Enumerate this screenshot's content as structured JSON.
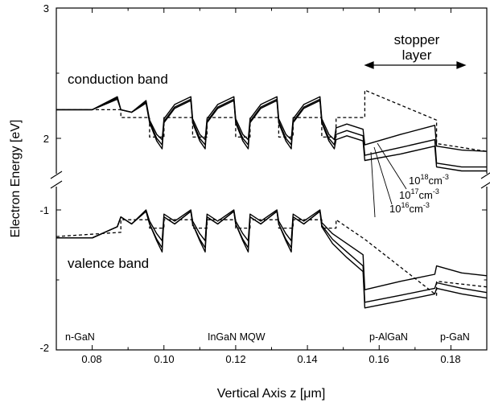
{
  "chart_data": {
    "type": "line",
    "xlabel": "Vertical Axis z [μm]",
    "ylabel": "Electron Energy [eV]",
    "xlim": [
      0.07,
      0.19
    ],
    "x_ticks": [
      "0.08",
      "0.10",
      "0.12",
      "0.14",
      "0.16",
      "0.18"
    ],
    "y_ticks_upper": [
      "2",
      "3"
    ],
    "y_ticks_lower": [
      "-2",
      "-1"
    ],
    "y_axis_break": true,
    "y_segments": [
      {
        "range": [
          1.7,
          3.0
        ],
        "label": "upper"
      },
      {
        "range": [
          -2.0,
          -0.5
        ],
        "label": "lower"
      }
    ],
    "annotations": {
      "conduction_band": "conduction band",
      "valence_band": "valence band",
      "stopper": "stopper",
      "layer": "layer",
      "doping": [
        {
          "base": "10",
          "exp": "18",
          "unit": "cm",
          "unit_exp": "-3"
        },
        {
          "base": "10",
          "exp": "17",
          "unit": "cm",
          "unit_exp": "-3"
        },
        {
          "base": "10",
          "exp": "16",
          "unit": "cm",
          "unit_exp": "-3"
        }
      ],
      "regions": [
        "n-GaN",
        "InGaN MQW",
        "p-AlGaN",
        "p-GaN"
      ]
    },
    "series": [
      {
        "name": "10^16 cm^-3",
        "style": "solid",
        "band": "conduction",
        "x": [
          0.07,
          0.08,
          0.087,
          0.088,
          0.091,
          0.095,
          0.096,
          0.098,
          0.0995,
          0.1,
          0.103,
          0.1075,
          0.108,
          0.11,
          0.1115,
          0.112,
          0.115,
          0.1195,
          0.12,
          0.122,
          0.1235,
          0.124,
          0.127,
          0.1315,
          0.132,
          0.134,
          0.1355,
          0.136,
          0.139,
          0.1435,
          0.144,
          0.146,
          0.1475,
          0.148,
          0.151,
          0.1555,
          0.156,
          0.166,
          0.1755,
          0.176,
          0.183,
          0.19
        ],
        "y": [
          2.22,
          2.22,
          2.3,
          2.22,
          2.2,
          2.27,
          2.12,
          1.98,
          1.92,
          2.12,
          2.23,
          2.29,
          2.12,
          1.98,
          1.92,
          2.12,
          2.23,
          2.29,
          2.12,
          1.98,
          1.92,
          2.12,
          2.23,
          2.29,
          2.12,
          1.98,
          1.92,
          2.12,
          2.23,
          2.29,
          2.12,
          1.98,
          1.92,
          1.99,
          2.02,
          1.98,
          1.83,
          1.88,
          1.94,
          1.78,
          1.75,
          1.75
        ]
      },
      {
        "name": "10^17 cm^-3",
        "style": "solid",
        "band": "conduction",
        "x": [
          0.07,
          0.08,
          0.087,
          0.088,
          0.091,
          0.095,
          0.096,
          0.098,
          0.0995,
          0.1,
          0.103,
          0.1075,
          0.108,
          0.11,
          0.1115,
          0.112,
          0.115,
          0.1195,
          0.12,
          0.122,
          0.1235,
          0.124,
          0.127,
          0.1315,
          0.132,
          0.134,
          0.1355,
          0.136,
          0.139,
          0.1435,
          0.144,
          0.146,
          0.1475,
          0.148,
          0.151,
          0.1555,
          0.156,
          0.166,
          0.1755,
          0.176,
          0.183,
          0.19
        ],
        "y": [
          2.22,
          2.22,
          2.31,
          2.22,
          2.2,
          2.28,
          2.13,
          2.0,
          1.95,
          2.13,
          2.24,
          2.3,
          2.13,
          2.0,
          1.95,
          2.13,
          2.24,
          2.3,
          2.13,
          2.0,
          1.95,
          2.13,
          2.24,
          2.3,
          2.13,
          2.0,
          1.95,
          2.13,
          2.24,
          2.3,
          2.13,
          2.0,
          1.95,
          2.03,
          2.06,
          2.02,
          1.87,
          1.93,
          1.99,
          1.81,
          1.78,
          1.78
        ]
      },
      {
        "name": "10^18 cm^-3",
        "style": "solid",
        "band": "conduction",
        "x": [
          0.07,
          0.08,
          0.087,
          0.088,
          0.091,
          0.095,
          0.096,
          0.098,
          0.0995,
          0.1,
          0.103,
          0.1075,
          0.108,
          0.11,
          0.1115,
          0.112,
          0.115,
          0.1195,
          0.12,
          0.122,
          0.1235,
          0.124,
          0.127,
          0.1315,
          0.132,
          0.134,
          0.1355,
          0.136,
          0.139,
          0.1435,
          0.144,
          0.146,
          0.1475,
          0.148,
          0.151,
          0.1555,
          0.156,
          0.166,
          0.1755,
          0.176,
          0.183,
          0.19
        ],
        "y": [
          2.22,
          2.22,
          2.32,
          2.22,
          2.2,
          2.29,
          2.14,
          2.03,
          1.99,
          2.15,
          2.26,
          2.32,
          2.15,
          2.03,
          1.99,
          2.15,
          2.26,
          2.32,
          2.15,
          2.03,
          1.99,
          2.15,
          2.26,
          2.32,
          2.15,
          2.03,
          1.99,
          2.15,
          2.26,
          2.32,
          2.15,
          2.03,
          1.99,
          2.08,
          2.11,
          2.07,
          1.95,
          2.03,
          2.1,
          1.94,
          1.91,
          1.9
        ]
      },
      {
        "name": "conduction (dashed)",
        "style": "dashed",
        "band": "conduction",
        "x": [
          0.07,
          0.088,
          0.088,
          0.096,
          0.096,
          0.1,
          0.1,
          0.108,
          0.108,
          0.112,
          0.112,
          0.12,
          0.12,
          0.124,
          0.124,
          0.132,
          0.132,
          0.136,
          0.136,
          0.144,
          0.144,
          0.148,
          0.148,
          0.156,
          0.156,
          0.176,
          0.176,
          0.19
        ],
        "y": [
          2.22,
          2.22,
          2.16,
          2.16,
          2.01,
          2.01,
          2.16,
          2.16,
          2.01,
          2.01,
          2.16,
          2.16,
          2.01,
          2.01,
          2.16,
          2.16,
          2.01,
          2.01,
          2.16,
          2.16,
          2.01,
          2.01,
          2.16,
          2.16,
          2.37,
          2.14,
          1.96,
          1.9
        ]
      },
      {
        "name": "10^16 cm^-3",
        "style": "solid",
        "band": "valence",
        "x": [
          0.07,
          0.08,
          0.087,
          0.088,
          0.091,
          0.095,
          0.096,
          0.098,
          0.0995,
          0.1,
          0.103,
          0.1075,
          0.108,
          0.11,
          0.1115,
          0.112,
          0.115,
          0.1195,
          0.12,
          0.122,
          0.1235,
          0.124,
          0.127,
          0.1315,
          0.132,
          0.134,
          0.1355,
          0.136,
          0.139,
          0.1435,
          0.144,
          0.147,
          0.151,
          0.1555,
          0.156,
          0.166,
          0.1755,
          0.176,
          0.183,
          0.19
        ],
        "y": [
          -1.2,
          -1.2,
          -1.12,
          -1.05,
          -1.1,
          -1.01,
          -1.1,
          -1.22,
          -1.3,
          -1.05,
          -1.1,
          -1.01,
          -1.1,
          -1.22,
          -1.3,
          -1.05,
          -1.1,
          -1.01,
          -1.1,
          -1.22,
          -1.3,
          -1.05,
          -1.1,
          -1.01,
          -1.1,
          -1.22,
          -1.3,
          -1.05,
          -1.1,
          -1.01,
          -1.12,
          -1.24,
          -1.34,
          -1.44,
          -1.7,
          -1.65,
          -1.6,
          -1.56,
          -1.6,
          -1.63
        ]
      },
      {
        "name": "10^17 cm^-3",
        "style": "solid",
        "band": "valence",
        "x": [
          0.07,
          0.08,
          0.087,
          0.088,
          0.091,
          0.095,
          0.096,
          0.098,
          0.0995,
          0.1,
          0.103,
          0.1075,
          0.108,
          0.11,
          0.1115,
          0.112,
          0.115,
          0.1195,
          0.12,
          0.122,
          0.1235,
          0.124,
          0.127,
          0.1315,
          0.132,
          0.134,
          0.1355,
          0.136,
          0.139,
          0.1435,
          0.144,
          0.147,
          0.151,
          0.1555,
          0.156,
          0.166,
          0.1755,
          0.176,
          0.183,
          0.19
        ],
        "y": [
          -1.2,
          -1.2,
          -1.12,
          -1.05,
          -1.1,
          -1.01,
          -1.1,
          -1.21,
          -1.27,
          -1.05,
          -1.1,
          -1.01,
          -1.1,
          -1.21,
          -1.27,
          -1.05,
          -1.1,
          -1.01,
          -1.1,
          -1.21,
          -1.27,
          -1.05,
          -1.1,
          -1.01,
          -1.1,
          -1.21,
          -1.27,
          -1.05,
          -1.1,
          -1.01,
          -1.11,
          -1.21,
          -1.3,
          -1.4,
          -1.66,
          -1.61,
          -1.56,
          -1.52,
          -1.56,
          -1.59
        ]
      },
      {
        "name": "10^18 cm^-3",
        "style": "solid",
        "band": "valence",
        "x": [
          0.07,
          0.08,
          0.087,
          0.088,
          0.091,
          0.095,
          0.096,
          0.098,
          0.0995,
          0.1,
          0.103,
          0.1075,
          0.108,
          0.11,
          0.1115,
          0.112,
          0.115,
          0.1195,
          0.12,
          0.122,
          0.1235,
          0.124,
          0.127,
          0.1315,
          0.132,
          0.134,
          0.1355,
          0.136,
          0.139,
          0.1435,
          0.144,
          0.147,
          0.151,
          0.1555,
          0.156,
          0.166,
          0.1755,
          0.176,
          0.183,
          0.19
        ],
        "y": [
          -1.2,
          -1.2,
          -1.12,
          -1.05,
          -1.1,
          -1.0,
          -1.08,
          -1.17,
          -1.22,
          -1.03,
          -1.08,
          -1.0,
          -1.08,
          -1.17,
          -1.22,
          -1.03,
          -1.08,
          -1.0,
          -1.08,
          -1.17,
          -1.22,
          -1.03,
          -1.08,
          -1.0,
          -1.08,
          -1.17,
          -1.22,
          -1.03,
          -1.08,
          -1.0,
          -1.09,
          -1.17,
          -1.24,
          -1.32,
          -1.57,
          -1.51,
          -1.46,
          -1.4,
          -1.45,
          -1.47
        ]
      },
      {
        "name": "valence (dashed)",
        "style": "dashed",
        "band": "valence",
        "x": [
          0.07,
          0.088,
          0.088,
          0.096,
          0.096,
          0.1,
          0.1,
          0.108,
          0.108,
          0.112,
          0.112,
          0.12,
          0.12,
          0.124,
          0.124,
          0.132,
          0.132,
          0.136,
          0.136,
          0.144,
          0.144,
          0.148,
          0.148,
          0.156,
          0.176,
          0.176,
          0.19
        ],
        "y": [
          -1.19,
          -1.16,
          -1.07,
          -1.07,
          -1.13,
          -1.13,
          -1.07,
          -1.07,
          -1.13,
          -1.13,
          -1.07,
          -1.07,
          -1.13,
          -1.13,
          -1.07,
          -1.07,
          -1.13,
          -1.13,
          -1.07,
          -1.07,
          -1.13,
          -1.13,
          -1.07,
          -1.21,
          -1.61,
          -1.51,
          -1.55
        ]
      }
    ]
  }
}
